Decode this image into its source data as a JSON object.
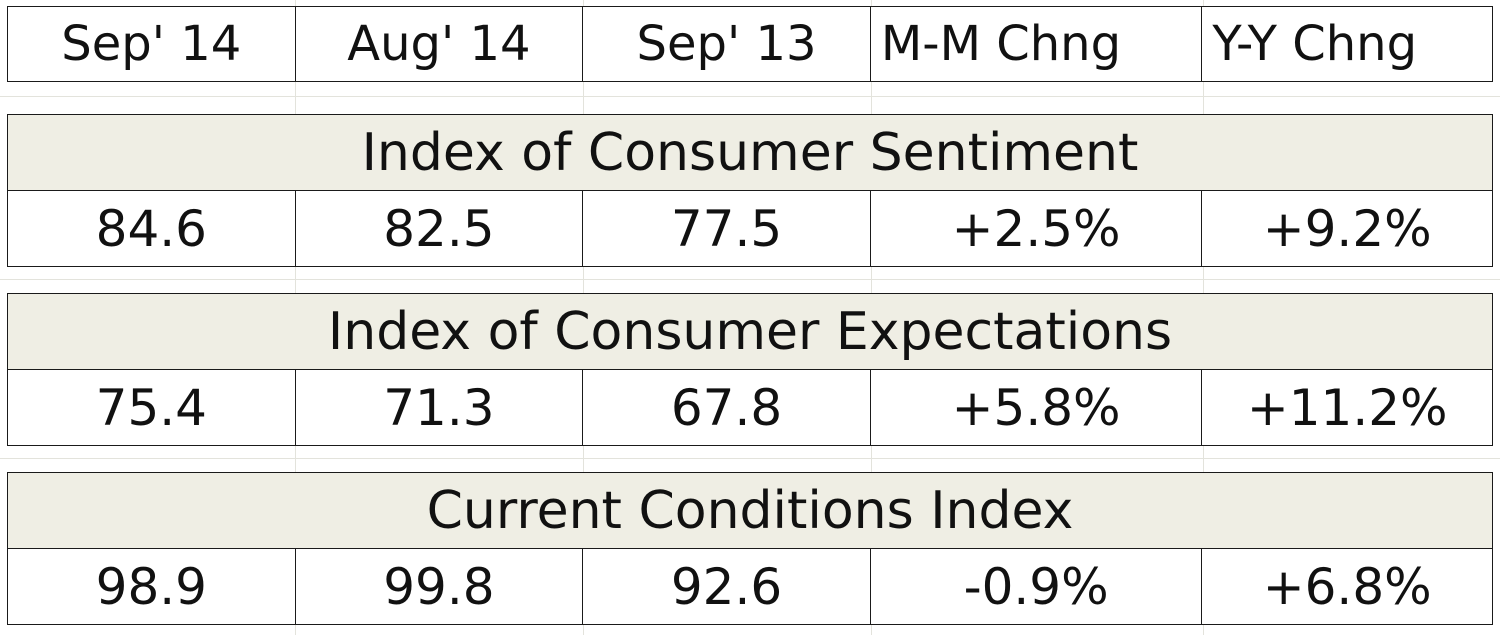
{
  "table": {
    "columns": [
      "Sep' 14",
      "Aug' 14",
      "Sep' 13",
      "M-M Chng",
      "Y-Y Chng"
    ],
    "sections": [
      {
        "title": "Index of Consumer Sentiment",
        "values": [
          "84.6",
          "82.5",
          "77.5",
          "+2.5%",
          "+9.2%"
        ]
      },
      {
        "title": "Index of Consumer Expectations",
        "values": [
          "75.4",
          "71.3",
          "67.8",
          "+5.8%",
          "+11.2%"
        ]
      },
      {
        "title": "Current Conditions Index",
        "values": [
          "98.9",
          "99.8",
          "92.6",
          "-0.9%",
          "+6.8%"
        ]
      }
    ]
  },
  "colors": {
    "section_band": "#efeee4",
    "border": "#1a1a1a",
    "gridline": "#e3e3dc"
  }
}
